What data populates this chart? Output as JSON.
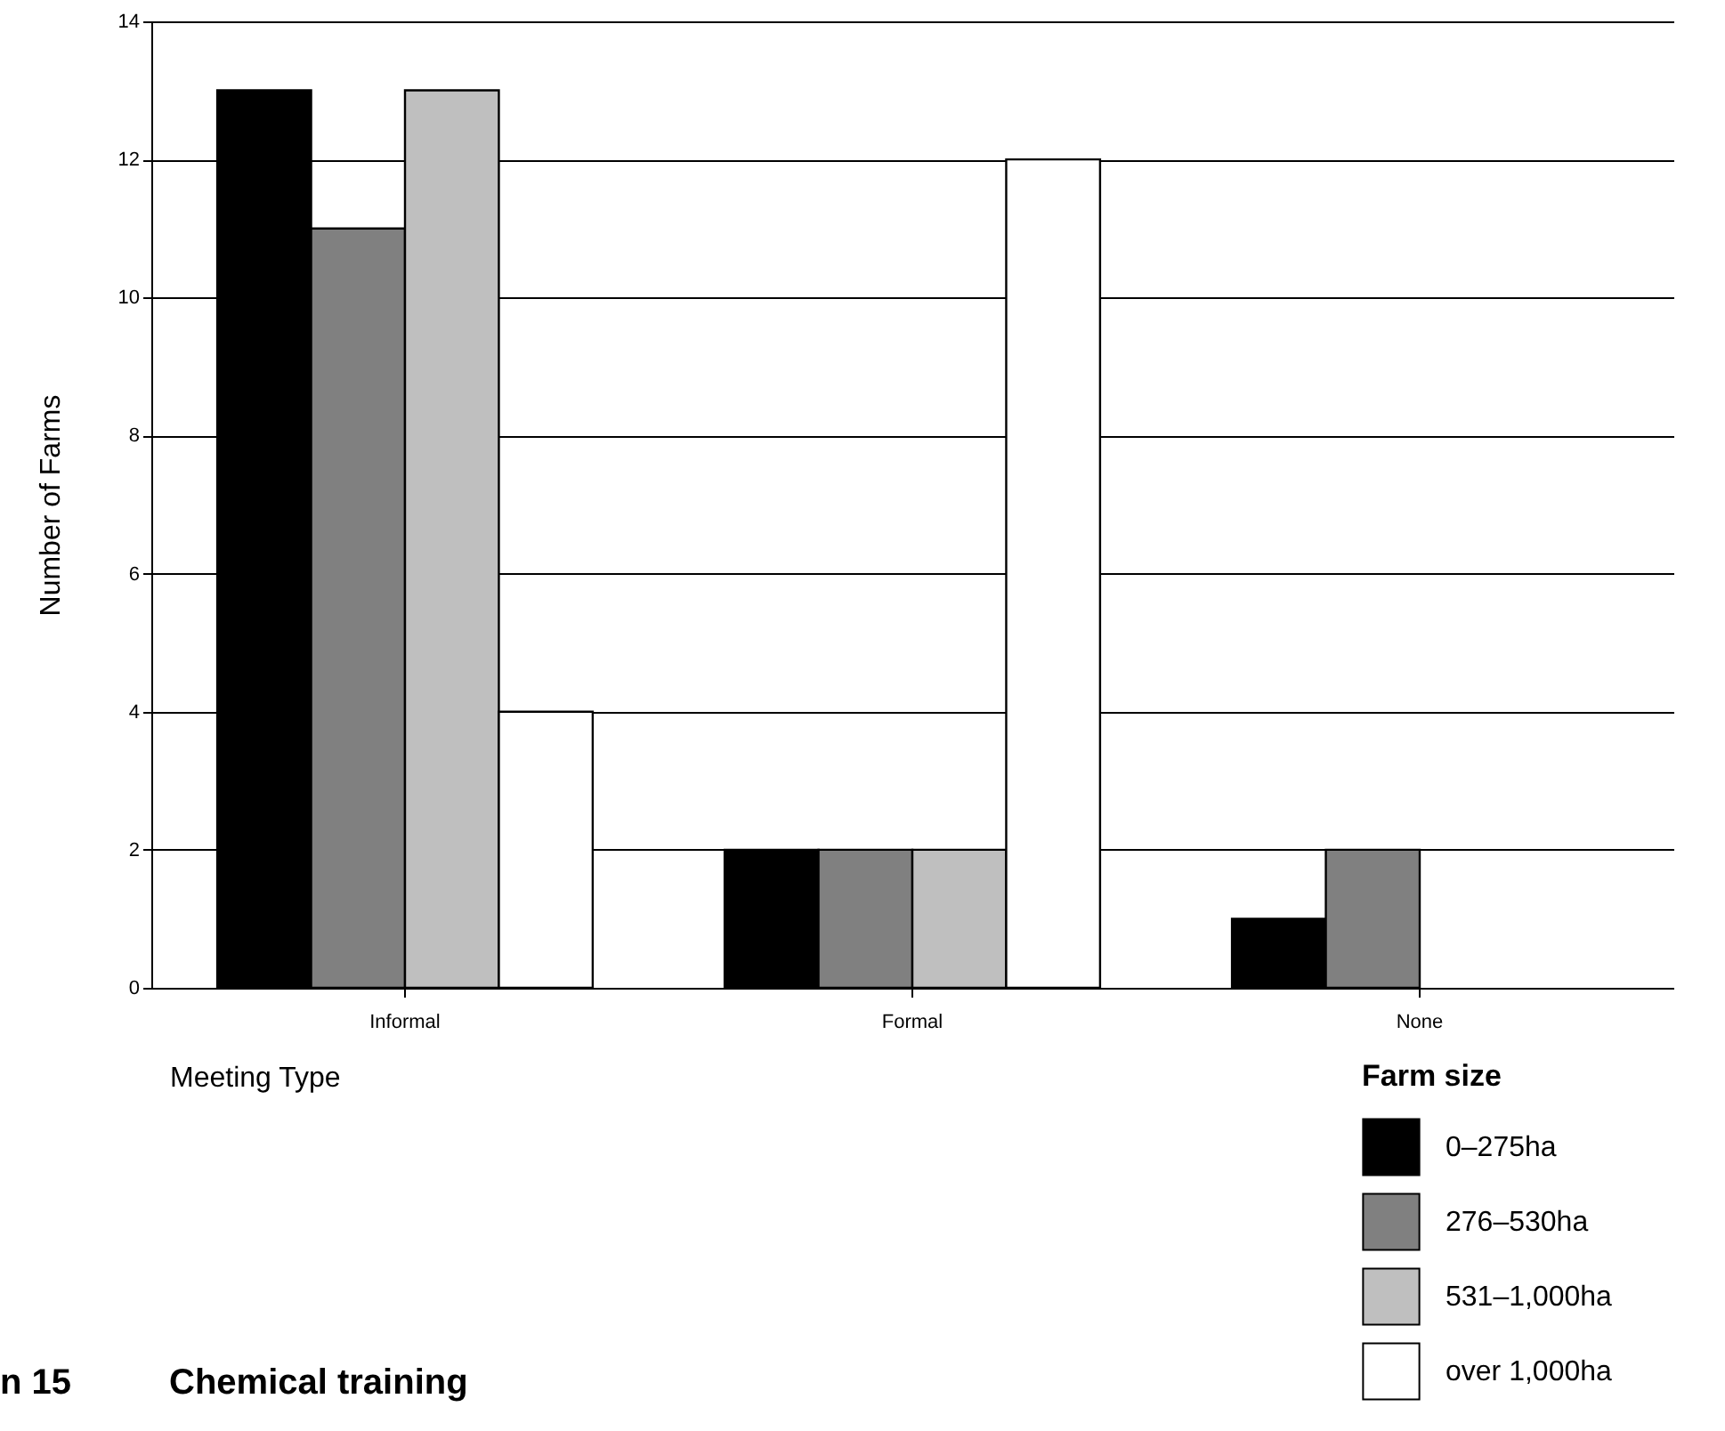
{
  "chart_data": {
    "type": "bar",
    "title": "Chemical training",
    "xlabel": "Meeting Type",
    "ylabel": "Number of Farms",
    "legend_title": "Farm size",
    "categories": [
      "Informal",
      "Formal",
      "None"
    ],
    "series": [
      {
        "name": "0–275ha",
        "color": "#000000",
        "values": [
          13,
          2,
          1
        ]
      },
      {
        "name": "276–530ha",
        "color": "#808080",
        "values": [
          11,
          2,
          2
        ]
      },
      {
        "name": "531–1,000ha",
        "color": "#bfbfbf",
        "values": [
          13,
          2,
          null
        ]
      },
      {
        "name": "over 1,000ha",
        "color": "#ffffff",
        "values": [
          4,
          12,
          null
        ]
      }
    ],
    "ylim": [
      0,
      14
    ],
    "yticks": [
      0,
      2,
      4,
      6,
      8,
      10,
      12,
      14
    ],
    "grid": "y",
    "legend": "bottom right",
    "annotations": [
      "n 15"
    ]
  }
}
